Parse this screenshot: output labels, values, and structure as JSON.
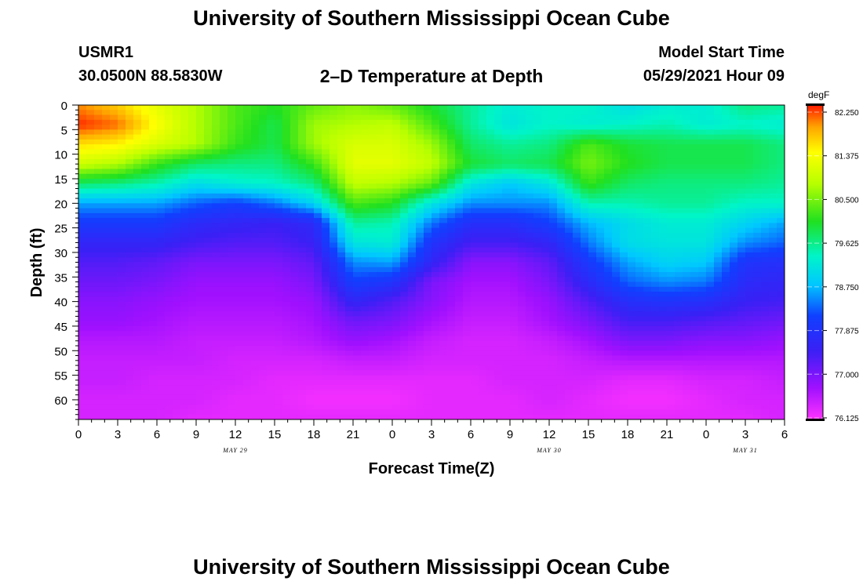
{
  "header": {
    "title": "University of Southern Mississippi Ocean Cube",
    "station_id": "USMR1",
    "station_coords": "30.0500N  88.5830W",
    "plot_title": "2–D Temperature at Depth",
    "model_start_label": "Model Start Time",
    "model_start_value": "05/29/2021 Hour 09"
  },
  "footer": {
    "title": "University of Southern Mississippi Ocean Cube"
  },
  "colors": {
    "max": "#ff1a00",
    "min": "#ff33ff"
  },
  "chart_data": {
    "type": "heatmap",
    "title": "2–D Temperature at Depth",
    "xlabel": "Forecast Time(Z)",
    "ylabel": "Depth (ft)",
    "x_ticks": [
      "0",
      "3",
      "6",
      "9",
      "12",
      "15",
      "18",
      "21",
      "0",
      "3",
      "6",
      "9",
      "12",
      "15",
      "18",
      "21",
      "0",
      "3",
      "6"
    ],
    "date_labels": [
      {
        "label": "MAY 29",
        "hour_index": 12
      },
      {
        "label": "MAY 30",
        "hour_index": 36
      },
      {
        "label": "MAY 31",
        "hour_index": 51
      }
    ],
    "x_range_hours": [
      0,
      54
    ],
    "y_ticks": [
      "0",
      "5",
      "10",
      "15",
      "20",
      "25",
      "30",
      "35",
      "40",
      "45",
      "50",
      "55",
      "60"
    ],
    "y_range_ft": [
      0,
      64
    ],
    "colorbar": {
      "unit": "degF",
      "ticks": [
        "82.250",
        "81.375",
        "80.500",
        "79.625",
        "78.750",
        "77.875",
        "77.000",
        "76.125"
      ],
      "range": [
        76.125,
        82.25
      ]
    },
    "grid_step_hours": 3,
    "depth_levels_ft": [
      0,
      4,
      8,
      12,
      16,
      20,
      24,
      28,
      32,
      36,
      40,
      44,
      48,
      52,
      56,
      60,
      64
    ],
    "temperatures_degF": [
      [
        81.9,
        81.6,
        81.1,
        80.7,
        80.2,
        80.0,
        80.3,
        80.5,
        80.3,
        79.9,
        79.5,
        79.2,
        79.3,
        79.3,
        79.0,
        79.2,
        79.2,
        79.6,
        79.5
      ],
      [
        82.2,
        82.0,
        81.3,
        80.7,
        80.2,
        79.8,
        80.6,
        80.7,
        80.8,
        80.2,
        79.5,
        79.1,
        79.3,
        79.2,
        79.3,
        79.4,
        79.2,
        79.3,
        79.2
      ],
      [
        81.5,
        81.4,
        81.0,
        80.7,
        80.1,
        79.8,
        80.6,
        81.0,
        81.0,
        80.6,
        79.7,
        79.5,
        79.6,
        80.2,
        79.9,
        79.8,
        79.8,
        79.8,
        79.6
      ],
      [
        80.9,
        80.7,
        80.1,
        79.7,
        79.6,
        79.6,
        80.1,
        81.1,
        81.1,
        80.8,
        79.9,
        79.7,
        79.8,
        80.4,
        80.0,
        79.8,
        79.8,
        79.8,
        79.6
      ],
      [
        79.7,
        79.6,
        79.4,
        79.0,
        79.2,
        79.3,
        79.6,
        80.8,
        80.7,
        80.3,
        79.1,
        78.8,
        79.1,
        80.1,
        79.7,
        79.6,
        79.6,
        79.6,
        79.5
      ],
      [
        78.6,
        78.6,
        78.6,
        78.3,
        78.1,
        78.4,
        78.9,
        80.2,
        80.0,
        79.1,
        78.5,
        78.5,
        78.5,
        79.4,
        79.4,
        79.5,
        79.5,
        79.3,
        79.3
      ],
      [
        78.0,
        78.0,
        78.0,
        77.7,
        77.6,
        77.5,
        77.7,
        79.5,
        79.4,
        78.4,
        77.8,
        77.8,
        78.1,
        78.7,
        79.0,
        79.2,
        79.2,
        78.9,
        78.6
      ],
      [
        77.6,
        77.6,
        77.6,
        77.4,
        77.3,
        77.3,
        77.5,
        79.1,
        79.2,
        77.9,
        77.4,
        77.4,
        77.6,
        78.4,
        79.0,
        79.1,
        79.1,
        78.5,
        78.3
      ],
      [
        77.3,
        77.3,
        77.2,
        77.0,
        77.0,
        77.0,
        77.2,
        78.5,
        78.6,
        77.6,
        76.9,
        76.9,
        77.2,
        78.0,
        78.6,
        78.9,
        78.8,
        77.9,
        77.8
      ],
      [
        77.1,
        77.1,
        77.0,
        76.8,
        76.8,
        76.8,
        77.0,
        78.1,
        77.9,
        77.0,
        76.7,
        76.7,
        77.0,
        77.7,
        78.3,
        78.5,
        78.4,
        77.7,
        77.6
      ],
      [
        76.9,
        76.9,
        76.8,
        76.7,
        76.7,
        76.7,
        76.8,
        77.6,
        77.3,
        76.9,
        76.6,
        76.6,
        76.8,
        77.3,
        77.8,
        77.9,
        77.8,
        77.5,
        77.4
      ],
      [
        76.8,
        76.8,
        76.7,
        76.6,
        76.6,
        76.6,
        76.7,
        77.1,
        77.0,
        76.7,
        76.5,
        76.5,
        76.7,
        77.0,
        77.4,
        77.4,
        77.3,
        77.2,
        77.1
      ],
      [
        76.6,
        76.6,
        76.6,
        76.5,
        76.5,
        76.5,
        76.6,
        76.8,
        76.7,
        76.5,
        76.4,
        76.4,
        76.5,
        76.7,
        77.0,
        77.0,
        76.9,
        76.9,
        76.8
      ],
      [
        76.5,
        76.5,
        76.5,
        76.5,
        76.4,
        76.4,
        76.4,
        76.5,
        76.5,
        76.4,
        76.4,
        76.4,
        76.4,
        76.5,
        76.6,
        76.6,
        76.6,
        76.6,
        76.6
      ],
      [
        76.5,
        76.5,
        76.4,
        76.4,
        76.4,
        76.3,
        76.3,
        76.3,
        76.3,
        76.3,
        76.3,
        76.4,
        76.4,
        76.4,
        76.3,
        76.3,
        76.4,
        76.4,
        76.5
      ],
      [
        76.4,
        76.4,
        76.4,
        76.4,
        76.3,
        76.3,
        76.2,
        76.2,
        76.2,
        76.3,
        76.3,
        76.3,
        76.4,
        76.3,
        76.2,
        76.2,
        76.3,
        76.4,
        76.4
      ],
      [
        76.4,
        76.4,
        76.4,
        76.3,
        76.3,
        76.3,
        76.3,
        76.3,
        76.3,
        76.3,
        76.3,
        76.3,
        76.3,
        76.3,
        76.3,
        76.3,
        76.3,
        76.3,
        76.4
      ]
    ]
  }
}
